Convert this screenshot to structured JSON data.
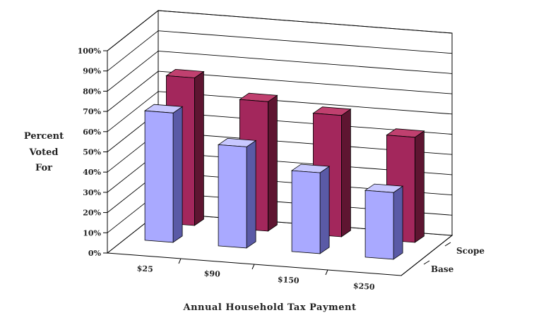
{
  "chart_data": {
    "type": "bar",
    "categories": [
      "$25",
      "$90",
      "$150",
      "$250"
    ],
    "series": [
      {
        "name": "Base",
        "values": [
          64,
          50,
          40,
          33
        ]
      },
      {
        "name": "Scope",
        "values": [
          73,
          64,
          60,
          52
        ]
      }
    ],
    "ylabel_lines": [
      "Percent",
      "Voted",
      "For"
    ],
    "xlabel": "Annual Household Tax Payment",
    "ylim": [
      0,
      100
    ],
    "yticks": [
      "0%",
      "10%",
      "20%",
      "30%",
      "40%",
      "50%",
      "60%",
      "70%",
      "80%",
      "90%",
      "100%"
    ],
    "grid": true,
    "colors": {
      "base_front": "#a9a9ff",
      "base_top": "#c8c8ff",
      "base_side": "#5a5aa6",
      "scope_front": "#a3275c",
      "scope_top": "#c0406f",
      "scope_side": "#5e1531",
      "grid": "#000000"
    }
  }
}
